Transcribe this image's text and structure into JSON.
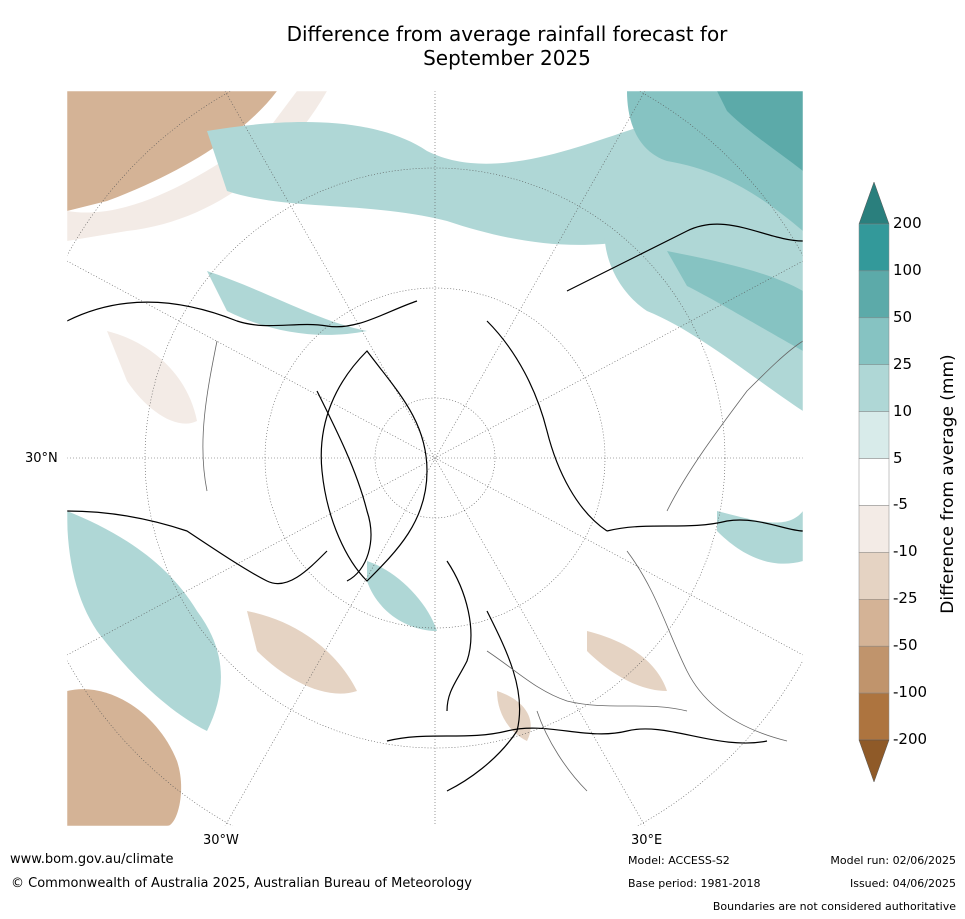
{
  "title_line1": "Difference from average rainfall forecast for",
  "title_line2": "September 2025",
  "map": {
    "lat_labels": [
      "30°N"
    ],
    "lon_labels": [
      "30°W",
      "30°E"
    ]
  },
  "colorbar": {
    "title": "Difference from average (mm)",
    "ticks": [
      "200",
      "100",
      "50",
      "25",
      "10",
      "5",
      "-5",
      "-10",
      "-25",
      "-50",
      "-100",
      "-200"
    ],
    "bins": [
      {
        "color": "#2a7f7d"
      },
      {
        "color": "#33999a"
      },
      {
        "color": "#5caaa9"
      },
      {
        "color": "#86c3c2"
      },
      {
        "color": "#afd7d6"
      },
      {
        "color": "#d8ebea"
      },
      {
        "color": "#ffffff"
      },
      {
        "color": "#f3ebe6"
      },
      {
        "color": "#e5d3c3"
      },
      {
        "color": "#d4b396"
      },
      {
        "color": "#c0946c"
      },
      {
        "color": "#ad743f"
      },
      {
        "color": "#8f5a28"
      }
    ]
  },
  "footer": {
    "website": "www.bom.gov.au/climate",
    "copyright": "© Commonwealth of Australia 2025, Australian Bureau of Meteorology",
    "model": "Model: ACCESS-S2",
    "base_period": "Base period: 1981-2018",
    "model_run": "Model run: 02/06/2025",
    "issued": "Issued: 04/06/2025",
    "disclaimer": "Boundaries are not considered authoritative"
  }
}
